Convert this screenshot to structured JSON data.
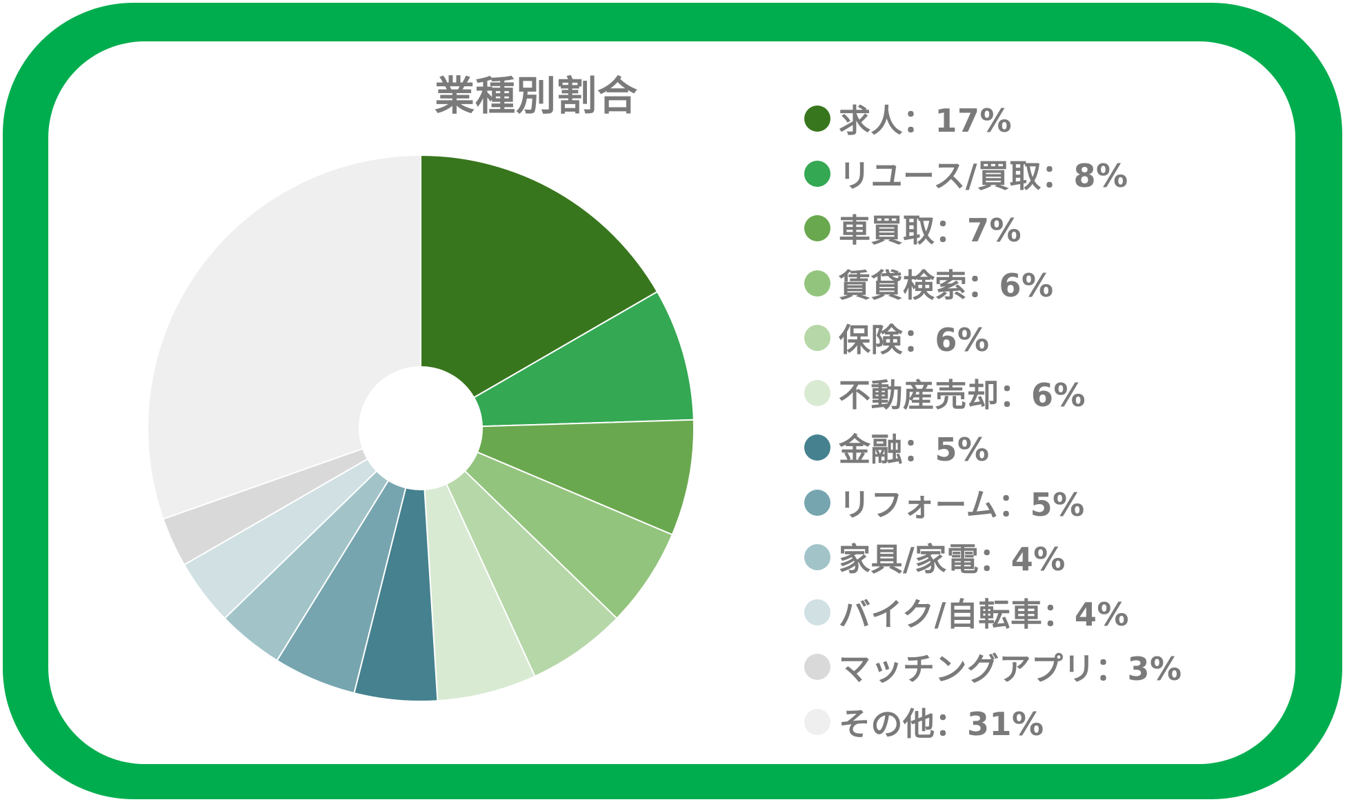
{
  "chart_data": {
    "type": "pie",
    "title": "業種別割合",
    "legend_position": "right",
    "slices": [
      {
        "name": "求人",
        "value": 17,
        "label": "求人：17%",
        "color": "#38761d"
      },
      {
        "name": "リユース/買取",
        "value": 8,
        "label": "リユース/買取：8%",
        "color": "#34a853"
      },
      {
        "name": "車買取",
        "value": 7,
        "label": "車買取：7%",
        "color": "#6aa84f"
      },
      {
        "name": "賃貸検索",
        "value": 6,
        "label": "賃貸検索：6%",
        "color": "#93c47d"
      },
      {
        "name": "保険",
        "value": 6,
        "label": "保険：6%",
        "color": "#b6d7a8"
      },
      {
        "name": "不動産売却",
        "value": 6,
        "label": "不動産売却：6%",
        "color": "#d9ead3"
      },
      {
        "name": "金融",
        "value": 5,
        "label": "金融：5%",
        "color": "#45818e"
      },
      {
        "name": "リフォーム",
        "value": 5,
        "label": "リフォーム：5%",
        "color": "#76a5af"
      },
      {
        "name": "家具/家電",
        "value": 4,
        "label": "家具/家電：4%",
        "color": "#a2c4c9"
      },
      {
        "name": "バイク/自転車",
        "value": 4,
        "label": "バイク/自転車：4%",
        "color": "#d0e0e3"
      },
      {
        "name": "マッチングアプリ",
        "value": 3,
        "label": "マッチングアプリ：3%",
        "color": "#d9d9d9"
      },
      {
        "name": "その他",
        "value": 31,
        "label": "その他：31%",
        "color": "#efefef"
      }
    ]
  }
}
